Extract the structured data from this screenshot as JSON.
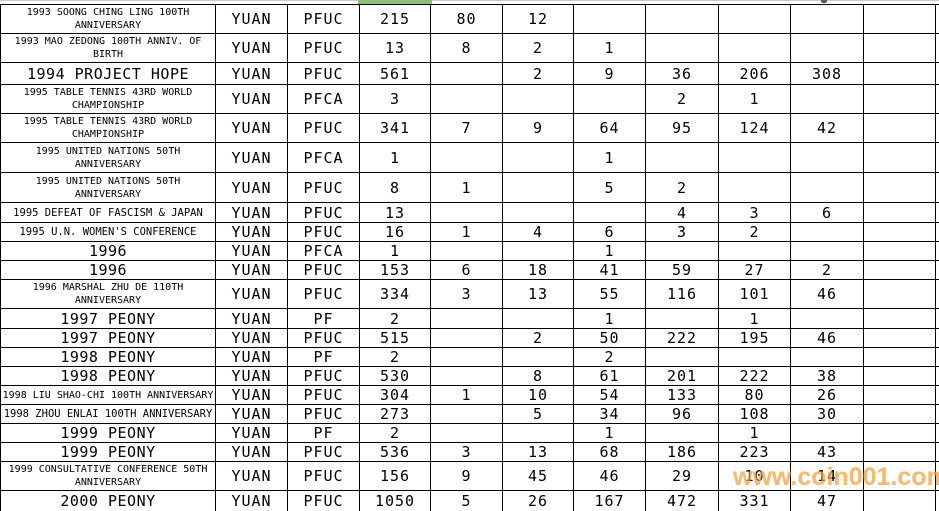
{
  "watermark": {
    "text": "www.coin001.com",
    "color": "#F59E3C"
  },
  "selection": {
    "color": "#8FBE78"
  },
  "table": {
    "rows": [
      {
        "description": "1993 SOONG CHING LING 100TH ANNIVERSARY",
        "currency": "YUAN",
        "grade": "PFUC",
        "values": [
          "215",
          "80",
          "12",
          "",
          "",
          "",
          "",
          ""
        ]
      },
      {
        "description": "1993 MAO ZEDONG 100TH ANNIV. OF BIRTH",
        "currency": "YUAN",
        "grade": "PFUC",
        "values": [
          "13",
          "8",
          "2",
          "1",
          "",
          "",
          "",
          ""
        ]
      },
      {
        "description": "1994 PROJECT HOPE",
        "currency": "YUAN",
        "grade": "PFUC",
        "values": [
          "561",
          "",
          "2",
          "9",
          "36",
          "206",
          "308",
          ""
        ]
      },
      {
        "description": "1995 TABLE TENNIS 43RD WORLD CHAMPIONSHIP",
        "currency": "YUAN",
        "grade": "PFCA",
        "values": [
          "3",
          "",
          "",
          "",
          "2",
          "1",
          "",
          ""
        ]
      },
      {
        "description": "1995 TABLE TENNIS 43RD WORLD CHAMPIONSHIP",
        "currency": "YUAN",
        "grade": "PFUC",
        "values": [
          "341",
          "7",
          "9",
          "64",
          "95",
          "124",
          "42",
          ""
        ]
      },
      {
        "description": "1995 UNITED NATIONS 50TH ANNIVERSARY",
        "currency": "YUAN",
        "grade": "PFCA",
        "values": [
          "1",
          "",
          "",
          "1",
          "",
          "",
          "",
          ""
        ]
      },
      {
        "description": "1995 UNITED NATIONS 50TH ANNIVERSARY",
        "currency": "YUAN",
        "grade": "PFUC",
        "values": [
          "8",
          "1",
          "",
          "5",
          "2",
          "",
          "",
          ""
        ]
      },
      {
        "description": "1995 DEFEAT OF FASCISM & JAPAN",
        "currency": "YUAN",
        "grade": "PFUC",
        "values": [
          "13",
          "",
          "",
          "",
          "4",
          "3",
          "6",
          ""
        ]
      },
      {
        "description": "1995 U.N. WOMEN'S CONFERENCE",
        "currency": "YUAN",
        "grade": "PFUC",
        "values": [
          "16",
          "1",
          "4",
          "6",
          "3",
          "2",
          "",
          ""
        ]
      },
      {
        "description": "1996",
        "currency": "YUAN",
        "grade": "PFCA",
        "values": [
          "1",
          "",
          "",
          "1",
          "",
          "",
          "",
          ""
        ]
      },
      {
        "description": "1996",
        "currency": "YUAN",
        "grade": "PFUC",
        "values": [
          "153",
          "6",
          "18",
          "41",
          "59",
          "27",
          "2",
          ""
        ]
      },
      {
        "description": "1996 MARSHAL ZHU DE 110TH ANNIVERSARY",
        "currency": "YUAN",
        "grade": "PFUC",
        "values": [
          "334",
          "3",
          "13",
          "55",
          "116",
          "101",
          "46",
          ""
        ]
      },
      {
        "description": "1997 PEONY",
        "currency": "YUAN",
        "grade": "PF",
        "values": [
          "2",
          "",
          "",
          "1",
          "",
          "1",
          "",
          ""
        ]
      },
      {
        "description": "1997 PEONY",
        "currency": "YUAN",
        "grade": "PFUC",
        "values": [
          "515",
          "",
          "2",
          "50",
          "222",
          "195",
          "46",
          ""
        ]
      },
      {
        "description": "1998 PEONY",
        "currency": "YUAN",
        "grade": "PF",
        "values": [
          "2",
          "",
          "",
          "2",
          "",
          "",
          "",
          ""
        ]
      },
      {
        "description": "1998 PEONY",
        "currency": "YUAN",
        "grade": "PFUC",
        "values": [
          "530",
          "",
          "8",
          "61",
          "201",
          "222",
          "38",
          ""
        ]
      },
      {
        "description": "1998 LIU SHAO-CHI 100TH ANNIVERSARY",
        "currency": "YUAN",
        "grade": "PFUC",
        "values": [
          "304",
          "1",
          "10",
          "54",
          "133",
          "80",
          "26",
          ""
        ]
      },
      {
        "description": "1998 ZHOU ENLAI 100TH ANNIVERSARY",
        "currency": "YUAN",
        "grade": "PFUC",
        "values": [
          "273",
          "",
          "5",
          "34",
          "96",
          "108",
          "30",
          ""
        ]
      },
      {
        "description": "1999 PEONY",
        "currency": "YUAN",
        "grade": "PF",
        "values": [
          "2",
          "",
          "",
          "1",
          "",
          "1",
          "",
          ""
        ]
      },
      {
        "description": "1999 PEONY",
        "currency": "YUAN",
        "grade": "PFUC",
        "values": [
          "536",
          "3",
          "13",
          "68",
          "186",
          "223",
          "43",
          ""
        ]
      },
      {
        "description": "1999 CONSULTATIVE CONFERENCE 50TH ANNIVERSARY",
        "currency": "YUAN",
        "grade": "PFUC",
        "values": [
          "156",
          "9",
          "45",
          "46",
          "29",
          "10",
          "14",
          ""
        ]
      },
      {
        "description": "2000 PEONY",
        "currency": "YUAN",
        "grade": "PFUC",
        "values": [
          "1050",
          "5",
          "26",
          "167",
          "472",
          "331",
          "47",
          ""
        ]
      }
    ]
  }
}
